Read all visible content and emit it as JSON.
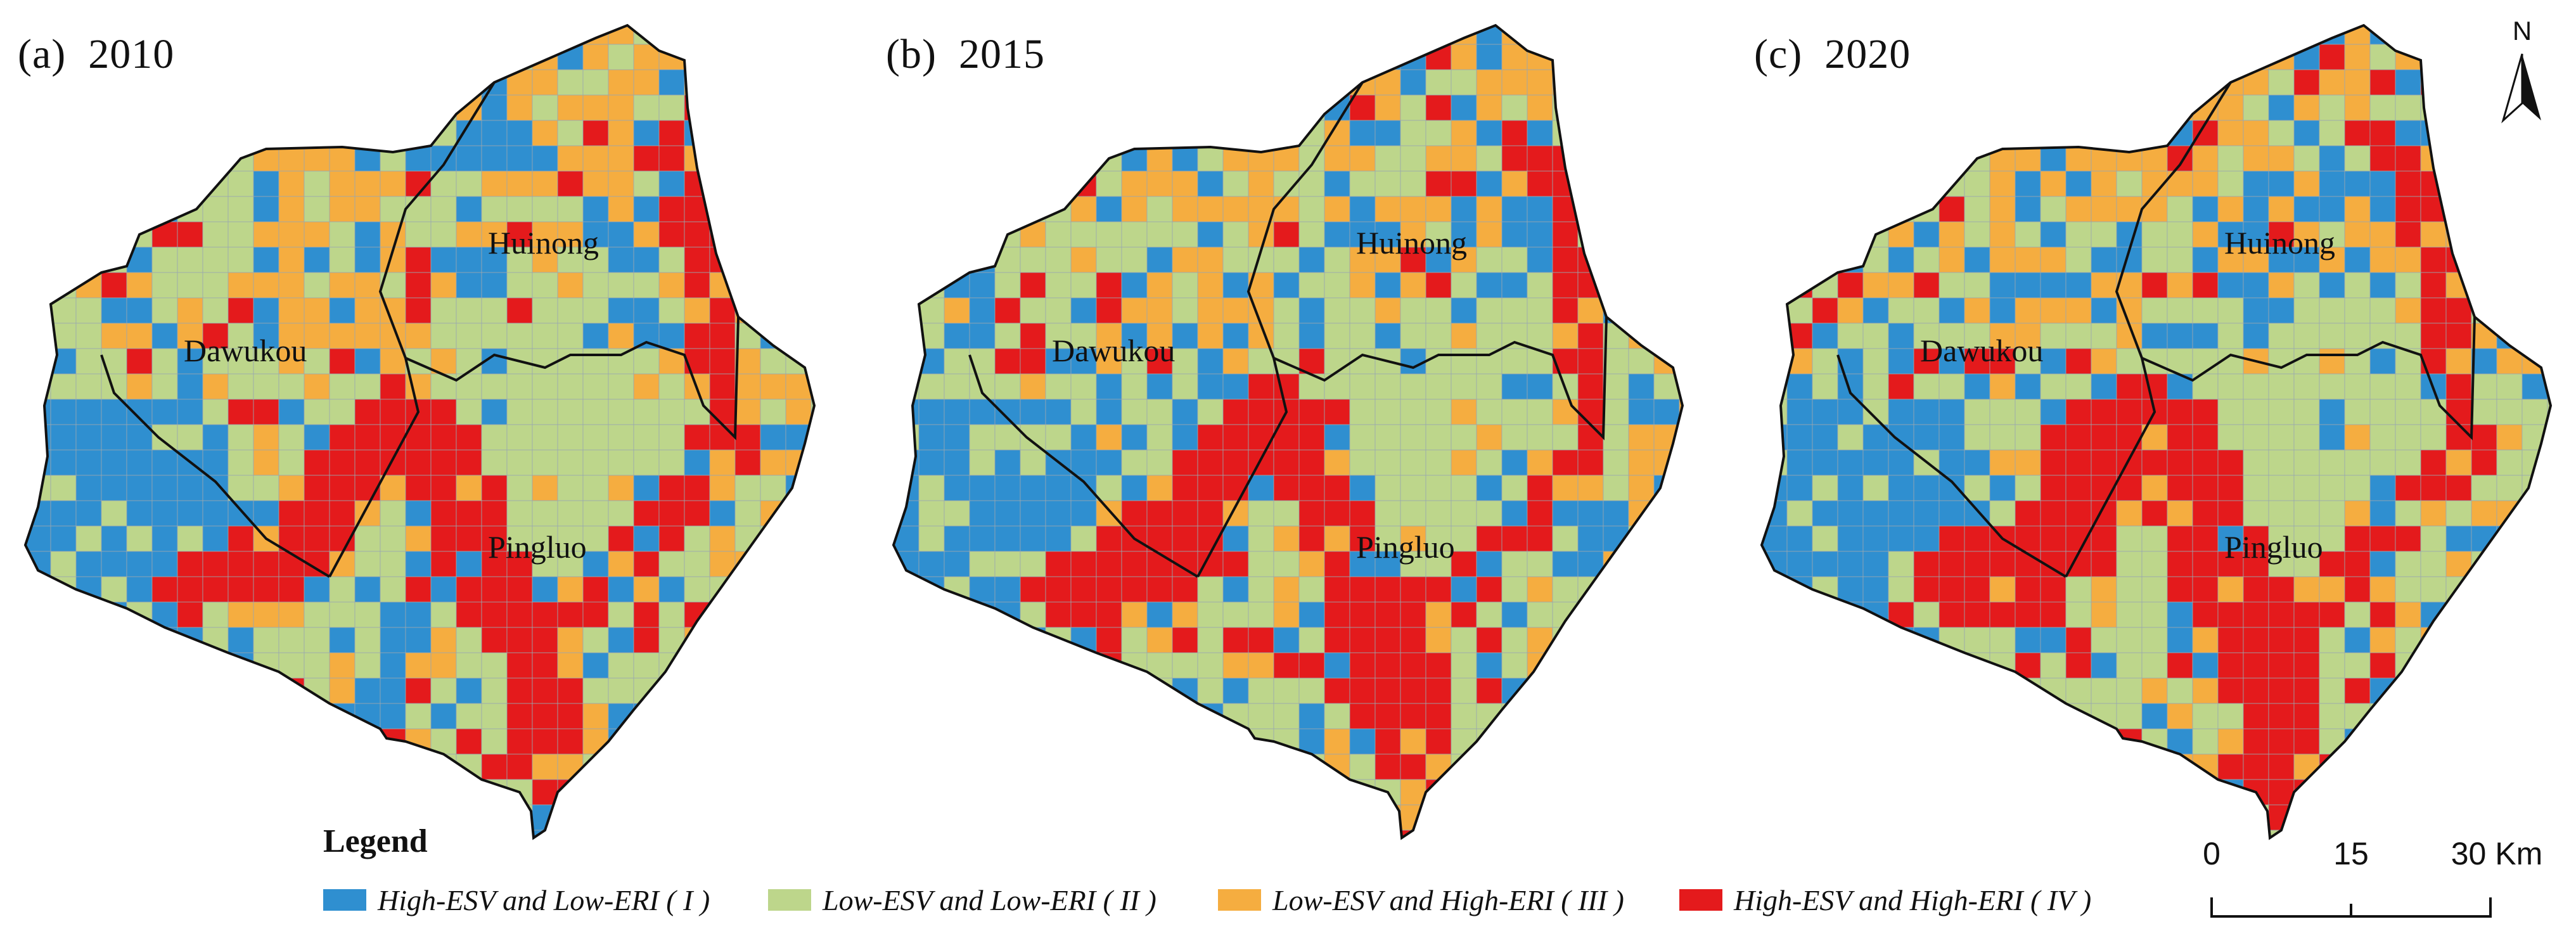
{
  "panels": [
    {
      "label": "(a)",
      "year": "2010"
    },
    {
      "label": "(b)",
      "year": "2015"
    },
    {
      "label": "(c)",
      "year": "2020"
    }
  ],
  "region_names": {
    "dawukou": "Dawukou",
    "huinong": "Huinong",
    "pingluo": "Pingluo"
  },
  "north_arrow": {
    "letter": "N",
    "icon": "north-arrow-icon"
  },
  "legend": {
    "title": "Legend",
    "items": [
      {
        "label": "High-ESV and Low-ERI ( I )",
        "color": "#2f8fd0"
      },
      {
        "label": "Low-ESV and Low-ERI ( II )",
        "color": "#bdd68b"
      },
      {
        "label": "Low-ESV and High-ERI ( III )",
        "color": "#f5ad40"
      },
      {
        "label": "High-ESV and High-ERI ( IV )",
        "color": "#e41a1c"
      }
    ]
  },
  "scale_bar": {
    "labels": [
      "0",
      "15",
      "30 Km"
    ],
    "values_km": [
      0,
      15,
      30
    ]
  },
  "colors": {
    "blue": "#2f8fd0",
    "green": "#bdd68b",
    "orange": "#f5ad40",
    "red": "#e41a1c",
    "boundary": "#111111"
  }
}
